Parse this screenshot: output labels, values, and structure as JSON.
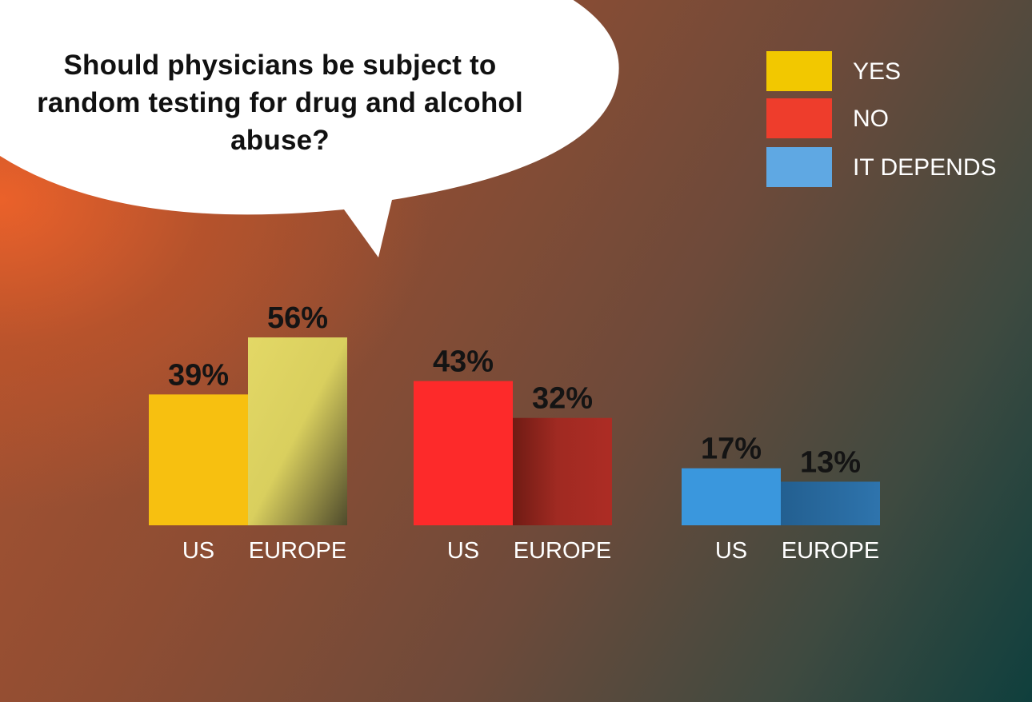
{
  "question": "Should physicians be subject to random testing for drug and alcohol abuse?",
  "legend": [
    {
      "label": "YES",
      "color": "#f2c800"
    },
    {
      "label": "NO",
      "color": "#ee3d2c"
    },
    {
      "label": "IT DEPENDS",
      "color": "#5fa8e3"
    }
  ],
  "chart_data": {
    "type": "bar",
    "title": "Should physicians be subject to random testing for drug and alcohol abuse?",
    "groups": [
      {
        "name": "YES",
        "bars": [
          {
            "category": "US",
            "value": 39,
            "label": "39%",
            "color": "#f7c010"
          },
          {
            "category": "EUROPE",
            "value": 56,
            "label": "56%",
            "color": "#e3d866"
          }
        ]
      },
      {
        "name": "NO",
        "bars": [
          {
            "category": "US",
            "value": 43,
            "label": "43%",
            "color": "#fd2a2a"
          },
          {
            "category": "EUROPE",
            "value": 32,
            "label": "32%",
            "color": "#a92c24"
          }
        ]
      },
      {
        "name": "IT DEPENDS",
        "bars": [
          {
            "category": "US",
            "value": 17,
            "label": "17%",
            "color": "#3a97dd"
          },
          {
            "category": "EUROPE",
            "value": 13,
            "label": "13%",
            "color": "#2a6fa6"
          }
        ]
      }
    ],
    "ylim": [
      0,
      56
    ],
    "grid": false,
    "legend_position": "top-right"
  }
}
